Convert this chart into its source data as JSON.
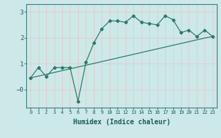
{
  "xlabel": "Humidex (Indice chaleur)",
  "ylabel": "",
  "background_color": "#cce8e8",
  "grid_color": "#e8c8c8",
  "line_color": "#2a7a6a",
  "x_values": [
    0,
    1,
    2,
    3,
    4,
    5,
    6,
    7,
    8,
    9,
    10,
    11,
    12,
    13,
    14,
    15,
    16,
    17,
    18,
    19,
    20,
    21,
    22,
    23
  ],
  "y_curve": [
    0.45,
    0.85,
    0.5,
    0.85,
    0.85,
    0.85,
    -0.45,
    1.05,
    1.8,
    2.35,
    2.65,
    2.65,
    2.6,
    2.85,
    2.6,
    2.55,
    2.5,
    2.85,
    2.7,
    2.2,
    2.3,
    2.05,
    2.3,
    2.05
  ],
  "y_linear": [
    0.45,
    0.52,
    0.59,
    0.66,
    0.73,
    0.8,
    0.87,
    0.94,
    1.01,
    1.08,
    1.15,
    1.22,
    1.29,
    1.36,
    1.43,
    1.5,
    1.57,
    1.64,
    1.71,
    1.78,
    1.85,
    1.92,
    1.99,
    2.05
  ],
  "ylim": [
    -0.7,
    3.3
  ],
  "xlim": [
    -0.5,
    23.5
  ],
  "yticks": [
    3,
    2,
    1,
    0
  ],
  "ytick_labels": [
    "3",
    "2",
    "1",
    "−0"
  ],
  "xticks": [
    0,
    1,
    2,
    3,
    4,
    5,
    6,
    7,
    8,
    9,
    10,
    11,
    12,
    13,
    14,
    15,
    16,
    17,
    18,
    19,
    20,
    21,
    22,
    23
  ]
}
